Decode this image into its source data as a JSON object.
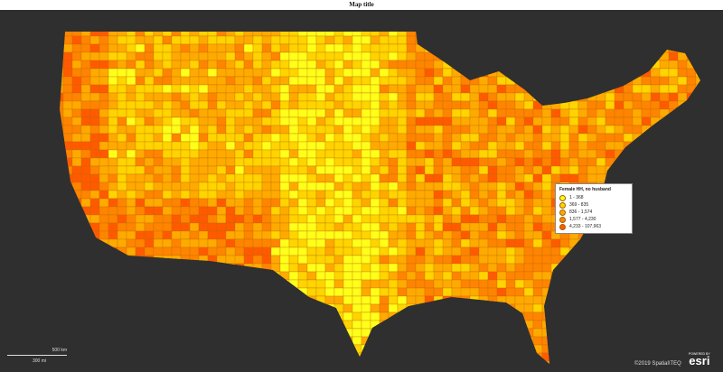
{
  "header": {
    "title": "Map title"
  },
  "legend": {
    "title": "Female HH, no husband",
    "items": [
      {
        "label": "1 - 368",
        "color": "#ffff1a"
      },
      {
        "label": "369 - 835",
        "color": "#ffd400"
      },
      {
        "label": "836 - 1,574",
        "color": "#ffaa00"
      },
      {
        "label": "1,577 - 4,230",
        "color": "#ff8400"
      },
      {
        "label": "4,233 - 107,963",
        "color": "#ff5a00"
      }
    ]
  },
  "scale_bar": {
    "km": "500 km",
    "mi": "300 mi"
  },
  "attribution": {
    "credit": "©2019 Spatial\\TEQ",
    "powered_by": "POWERED BY",
    "brand": "esri"
  }
}
